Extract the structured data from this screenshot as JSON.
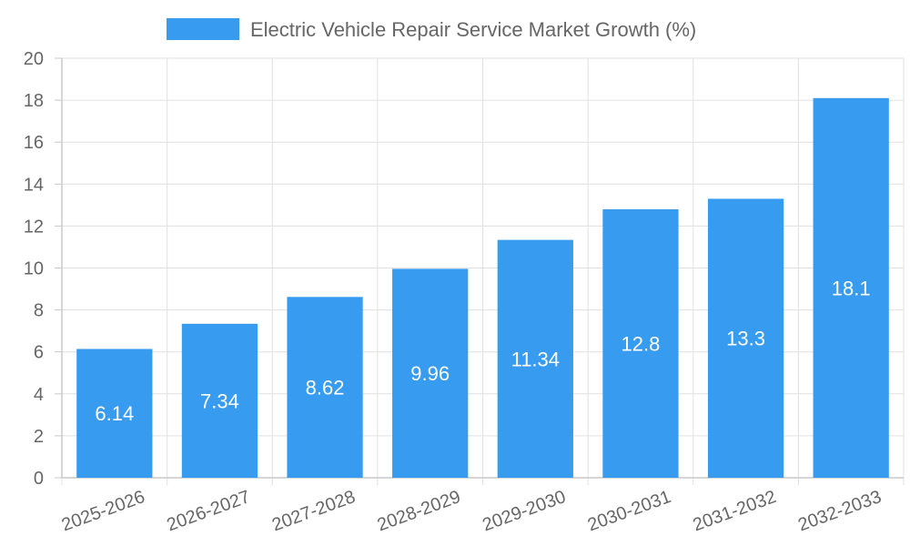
{
  "colors": {
    "bar": "#379bf0",
    "grid": "#e0e0e0",
    "axis": "#c8c8c8",
    "text": "#666666",
    "value_label": "#ffffff"
  },
  "chart_data": {
    "type": "bar",
    "categories": [
      "2025-2026",
      "2026-2027",
      "2027-2028",
      "2028-2029",
      "2029-2030",
      "2030-2031",
      "2031-2032",
      "2032-2033"
    ],
    "series": [
      {
        "name": "Electric Vehicle Repair Service Market Growth (%)",
        "values": [
          6.14,
          7.34,
          8.62,
          9.96,
          11.34,
          12.8,
          13.3,
          18.1
        ]
      }
    ],
    "value_labels": [
      "6.14",
      "7.34",
      "8.62",
      "9.96",
      "11.34",
      "12.8",
      "13.3",
      "18.1"
    ],
    "y_ticks": [
      "0",
      "2",
      "4",
      "6",
      "8",
      "10",
      "12",
      "14",
      "16",
      "18",
      "20"
    ],
    "ylim": [
      0,
      20
    ],
    "legend_position": "top",
    "grid": true,
    "x_tick_rotation": "rotated"
  }
}
